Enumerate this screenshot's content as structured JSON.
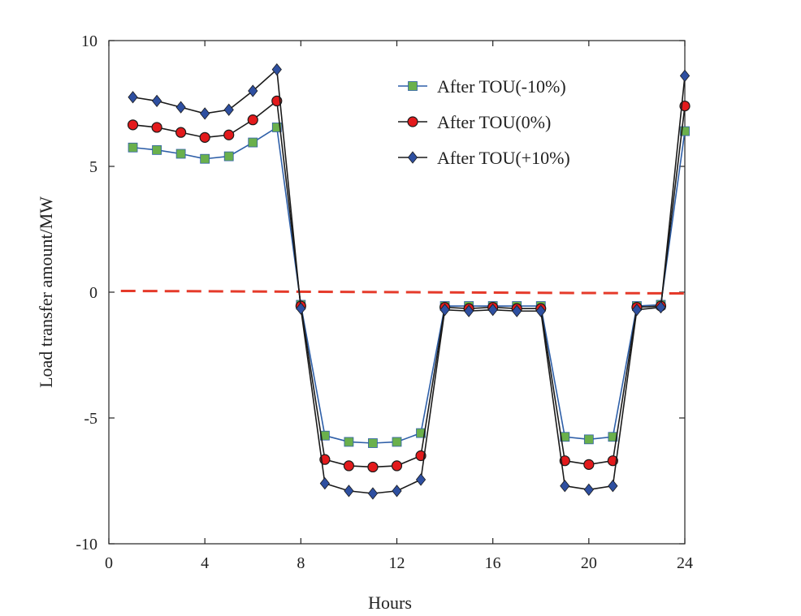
{
  "chart_data": {
    "type": "line",
    "xlabel": "Hours",
    "ylabel": "Load transfer amount/MW",
    "xlim": [
      0,
      24
    ],
    "ylim": [
      -10,
      10
    ],
    "xticks": [
      0,
      4,
      8,
      12,
      16,
      20,
      24
    ],
    "yticks": [
      -10,
      -5,
      0,
      5,
      10
    ],
    "grid": false,
    "legend_position": "top-right",
    "x": [
      1,
      2,
      3,
      4,
      5,
      6,
      7,
      8,
      9,
      10,
      11,
      12,
      13,
      14,
      15,
      16,
      17,
      18,
      19,
      20,
      21,
      22,
      23,
      24
    ],
    "series": [
      {
        "name": "After TOU(-10%)",
        "color": "#2e5fa8",
        "marker": "square",
        "marker_fill": "#6ab04c",
        "values": [
          5.75,
          5.65,
          5.5,
          5.3,
          5.4,
          5.95,
          6.55,
          -0.5,
          -5.7,
          -5.95,
          -6.0,
          -5.95,
          -5.6,
          -0.55,
          -0.55,
          -0.55,
          -0.55,
          -0.55,
          -5.75,
          -5.85,
          -5.75,
          -0.55,
          -0.5,
          6.4
        ]
      },
      {
        "name": "After TOU(0%)",
        "color": "#1a1a1a",
        "marker": "circle",
        "marker_fill": "#e31a1c",
        "values": [
          6.65,
          6.55,
          6.35,
          6.15,
          6.25,
          6.85,
          7.6,
          -0.55,
          -6.65,
          -6.9,
          -6.95,
          -6.9,
          -6.5,
          -0.6,
          -0.65,
          -0.6,
          -0.65,
          -0.65,
          -6.7,
          -6.85,
          -6.7,
          -0.6,
          -0.55,
          7.4
        ]
      },
      {
        "name": "After TOU(+10%)",
        "color": "#1a1a1a",
        "marker": "diamond",
        "marker_fill": "#2e4fa0",
        "values": [
          7.75,
          7.6,
          7.35,
          7.1,
          7.25,
          8.0,
          8.85,
          -0.65,
          -7.6,
          -7.9,
          -8.0,
          -7.9,
          -7.45,
          -0.7,
          -0.75,
          -0.7,
          -0.75,
          -0.75,
          -7.7,
          -7.85,
          -7.7,
          -0.7,
          -0.6,
          8.6
        ]
      }
    ],
    "reference_line": {
      "type": "dashed",
      "color": "#e53a2a",
      "x": [
        0.5,
        24
      ],
      "y": [
        0.05,
        -0.05
      ]
    }
  }
}
